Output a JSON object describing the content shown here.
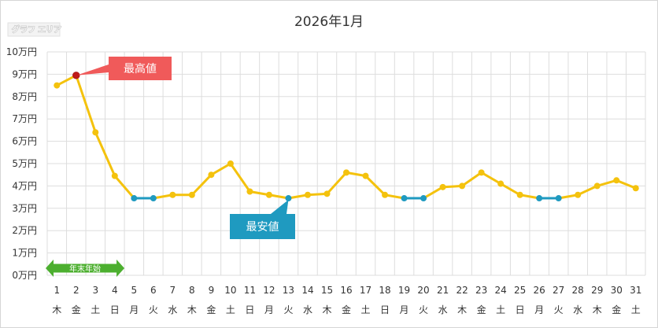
{
  "chart_data": {
    "type": "line",
    "title": "2026年1月",
    "area_label": "グラフ エリア",
    "y_ticks": [
      "0万円",
      "1万円",
      "2万円",
      "3万円",
      "4万円",
      "5万円",
      "6万円",
      "7万円",
      "8万円",
      "9万円",
      "10万円"
    ],
    "ylim": [
      0,
      10
    ],
    "x": [
      "1",
      "2",
      "3",
      "4",
      "5",
      "6",
      "7",
      "8",
      "9",
      "10",
      "11",
      "12",
      "13",
      "14",
      "15",
      "16",
      "17",
      "18",
      "19",
      "20",
      "21",
      "22",
      "23",
      "24",
      "25",
      "26",
      "27",
      "28",
      "29",
      "30",
      "31"
    ],
    "weekdays": [
      "木",
      "金",
      "土",
      "日",
      "月",
      "火",
      "水",
      "木",
      "金",
      "土",
      "日",
      "月",
      "火",
      "水",
      "木",
      "金",
      "土",
      "日",
      "月",
      "火",
      "水",
      "木",
      "金",
      "土",
      "日",
      "月",
      "火",
      "水",
      "木",
      "金",
      "土"
    ],
    "values": [
      8.5,
      8.95,
      6.4,
      4.45,
      3.45,
      3.45,
      3.6,
      3.6,
      4.5,
      5.0,
      3.75,
      3.6,
      3.45,
      3.6,
      3.65,
      4.6,
      4.45,
      3.6,
      3.45,
      3.45,
      3.95,
      4.0,
      4.6,
      4.1,
      3.6,
      3.45,
      3.45,
      3.6,
      4.0,
      4.25,
      3.9
    ],
    "series_color": "#f4c20d",
    "low_color": "#1f9ac0",
    "highest": {
      "label": "最高値",
      "day": 2,
      "color": "#f05a5a"
    },
    "lowest": {
      "label": "最安値",
      "day": 13,
      "color": "#1f9ac0"
    },
    "low_days": [
      5,
      6,
      13,
      19,
      20,
      26,
      27
    ],
    "band": {
      "label": "年末年始",
      "from_day": 1,
      "to_day": 4,
      "color": "#4caf2f"
    },
    "grid": true
  }
}
